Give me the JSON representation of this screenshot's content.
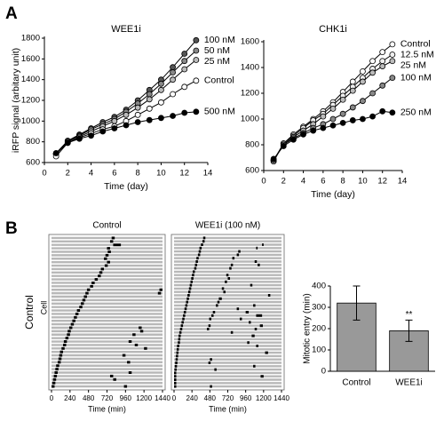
{
  "panel_labels": [
    "A",
    "B"
  ],
  "chart_data": [
    {
      "type": "line",
      "title": "WEE1i",
      "xlabel": "Time (day)",
      "ylabel": "iRFP signal (arbitary unit)",
      "x": [
        1,
        2,
        3,
        4,
        5,
        6,
        7,
        8,
        9,
        10,
        11,
        12,
        13
      ],
      "xlim": [
        0,
        14
      ],
      "xticks": [
        0,
        2,
        4,
        6,
        8,
        10,
        12,
        14
      ],
      "ylim": [
        600,
        1800
      ],
      "yticks": [
        600,
        800,
        1000,
        1200,
        1400,
        1600,
        1800
      ],
      "series": [
        {
          "name": "100 nM",
          "color": "#555555",
          "values": [
            690,
            810,
            870,
            930,
            990,
            1040,
            1110,
            1200,
            1300,
            1400,
            1520,
            1650,
            1780
          ]
        },
        {
          "name": "50 nM",
          "color": "#888888",
          "values": [
            680,
            810,
            860,
            920,
            970,
            1020,
            1090,
            1170,
            1260,
            1360,
            1470,
            1580,
            1680
          ]
        },
        {
          "name": "25 nM",
          "color": "#bbbbbb",
          "values": [
            680,
            800,
            850,
            900,
            950,
            1000,
            1060,
            1130,
            1210,
            1300,
            1400,
            1500,
            1590
          ]
        },
        {
          "name": "Control",
          "color": "#ffffff",
          "values": [
            660,
            790,
            840,
            880,
            920,
            950,
            1000,
            1060,
            1120,
            1180,
            1260,
            1330,
            1390
          ]
        },
        {
          "name": "500 nM",
          "color": "#000000",
          "values": [
            690,
            790,
            830,
            860,
            900,
            930,
            960,
            990,
            1010,
            1030,
            1050,
            1080,
            1090
          ]
        }
      ]
    },
    {
      "type": "line",
      "title": "CHK1i",
      "xlabel": "Time (day)",
      "x": [
        1,
        2,
        3,
        4,
        5,
        6,
        7,
        8,
        9,
        10,
        11,
        12,
        13
      ],
      "xlim": [
        0,
        14
      ],
      "xticks": [
        0,
        2,
        4,
        6,
        8,
        10,
        12,
        14
      ],
      "ylim": [
        600,
        1600
      ],
      "yticks": [
        600,
        800,
        1000,
        1200,
        1400,
        1600
      ],
      "series": [
        {
          "name": "Control",
          "color": "#ffffff",
          "values": [
            670,
            810,
            880,
            940,
            1000,
            1060,
            1130,
            1210,
            1290,
            1370,
            1450,
            1520,
            1580
          ]
        },
        {
          "name": "12.5 nM",
          "color": "#eeeeee",
          "values": [
            680,
            810,
            870,
            930,
            990,
            1040,
            1110,
            1180,
            1250,
            1320,
            1390,
            1450,
            1500
          ]
        },
        {
          "name": "25 nM",
          "color": "#bbbbbb",
          "values": [
            680,
            800,
            860,
            910,
            960,
            1020,
            1080,
            1150,
            1220,
            1290,
            1360,
            1410,
            1450
          ]
        },
        {
          "name": "100 nM",
          "color": "#888888",
          "values": [
            680,
            800,
            850,
            890,
            930,
            960,
            1000,
            1040,
            1090,
            1140,
            1200,
            1260,
            1320
          ]
        },
        {
          "name": "250 nM",
          "color": "#000000",
          "values": [
            690,
            790,
            840,
            880,
            910,
            930,
            950,
            970,
            990,
            1000,
            1020,
            1060,
            1050
          ]
        }
      ]
    },
    {
      "type": "raster",
      "title": "Control",
      "xlabel": "Time (min)",
      "ylabel": "Cell",
      "row_group_label": "Control",
      "xlim": [
        0,
        1440
      ],
      "xticks": [
        0,
        240,
        480,
        720,
        960,
        1200,
        1440
      ],
      "rows": [
        [
          [
            780,
            820
          ]
        ],
        [
          [
            760,
            800
          ]
        ],
        [
          [
            800,
            900
          ]
        ],
        [
          [
            720,
            760
          ]
        ],
        [
          [
            730,
            770
          ]
        ],
        [
          [
            700,
            740
          ]
        ],
        [
          [
            680,
            720
          ]
        ],
        [
          [
            720,
            760
          ]
        ],
        [
          [
            690,
            730
          ]
        ],
        [
          [
            640,
            680
          ]
        ],
        [
          [
            620,
            660
          ]
        ],
        [
          [
            600,
            640
          ]
        ],
        [
          [
            560,
            600
          ]
        ],
        [
          [
            520,
            560
          ]
        ],
        [
          [
            500,
            540
          ]
        ],
        [
          [
            460,
            500
          ],
          [
            1400,
            1440
          ]
        ],
        [
          [
            440,
            480
          ],
          [
            1380,
            1420
          ]
        ],
        [
          [
            420,
            460
          ]
        ],
        [
          [
            400,
            440
          ]
        ],
        [
          [
            380,
            420
          ]
        ],
        [
          [
            360,
            400
          ]
        ],
        [
          [
            330,
            370
          ]
        ],
        [
          [
            310,
            350
          ]
        ],
        [
          [
            290,
            330
          ]
        ],
        [
          [
            270,
            310
          ]
        ],
        [
          [
            250,
            290
          ]
        ],
        [
          [
            230,
            270
          ],
          [
            1130,
            1170
          ]
        ],
        [
          [
            210,
            250
          ],
          [
            1150,
            1190
          ]
        ],
        [
          [
            200,
            240
          ],
          [
            1050,
            1090
          ]
        ],
        [
          [
            180,
            220
          ]
        ],
        [
          [
            160,
            200
          ],
          [
            1000,
            1040
          ]
        ],
        [
          [
            150,
            190
          ],
          [
            1080,
            1120
          ]
        ],
        [
          [
            130,
            170
          ],
          [
            1200,
            1240
          ]
        ],
        [
          [
            110,
            150
          ]
        ],
        [
          [
            100,
            140
          ],
          [
            920,
            960
          ]
        ],
        [
          [
            90,
            130
          ]
        ],
        [
          [
            80,
            120
          ],
          [
            980,
            1020
          ]
        ],
        [
          [
            60,
            100
          ]
        ],
        [
          [
            50,
            90
          ]
        ],
        [
          [
            40,
            80
          ],
          [
            1000,
            1040
          ]
        ],
        [
          [
            30,
            70
          ],
          [
            760,
            800
          ]
        ],
        [
          [
            20,
            60
          ],
          [
            800,
            840
          ]
        ],
        [
          [
            10,
            50
          ]
        ],
        [
          [
            0,
            40
          ],
          [
            940,
            980
          ]
        ]
      ]
    },
    {
      "type": "raster",
      "title": "WEE1i (100 nM)",
      "xlabel": "Time (min)",
      "xlim": [
        0,
        1440
      ],
      "xticks": [
        0,
        240,
        480,
        720,
        960,
        1200,
        1440
      ],
      "rows": [
        [
          [
            390,
            420
          ]
        ],
        [
          [
            380,
            410
          ]
        ],
        [
          [
            360,
            390
          ],
          [
            1180,
            1200
          ]
        ],
        [
          [
            340,
            370
          ],
          [
            1100,
            1120
          ]
        ],
        [
          [
            330,
            360
          ],
          [
            860,
            890
          ]
        ],
        [
          [
            320,
            350
          ],
          [
            840,
            870
          ]
        ],
        [
          [
            300,
            330
          ],
          [
            780,
            810
          ]
        ],
        [
          [
            290,
            320
          ],
          [
            1080,
            1110
          ]
        ],
        [
          [
            280,
            310
          ],
          [
            760,
            790
          ],
          [
            1120,
            1150
          ]
        ],
        [
          [
            270,
            300
          ],
          [
            740,
            770
          ]
        ],
        [
          [
            250,
            280
          ]
        ],
        [
          [
            240,
            270
          ],
          [
            700,
            730
          ]
        ],
        [
          [
            230,
            260
          ],
          [
            720,
            750
          ]
        ],
        [
          [
            220,
            250
          ],
          [
            680,
            710
          ]
        ],
        [
          [
            210,
            240
          ],
          [
            1020,
            1050
          ]
        ],
        [
          [
            200,
            230
          ],
          [
            640,
            670
          ]
        ],
        [
          [
            190,
            220
          ],
          [
            660,
            690
          ]
        ],
        [
          [
            180,
            210
          ],
          [
            1260,
            1290
          ]
        ],
        [
          [
            170,
            200
          ],
          [
            600,
            640
          ]
        ],
        [
          [
            160,
            190
          ],
          [
            580,
            610
          ]
        ],
        [
          [
            150,
            180
          ],
          [
            560,
            590
          ],
          [
            1060,
            1090
          ]
        ],
        [
          [
            140,
            170
          ],
          [
            840,
            870
          ]
        ],
        [
          [
            130,
            160
          ],
          [
            520,
            550
          ],
          [
            960,
            1000
          ]
        ],
        [
          [
            120,
            150
          ],
          [
            500,
            530
          ],
          [
            1100,
            1180
          ]
        ],
        [
          [
            110,
            140
          ],
          [
            470,
            500
          ],
          [
            880,
            910
          ]
        ],
        [
          [
            100,
            130
          ],
          [
            1000,
            1030
          ]
        ],
        [
          [
            90,
            120
          ],
          [
            460,
            490
          ],
          [
            1150,
            1190
          ]
        ],
        [
          [
            80,
            110
          ],
          [
            440,
            470
          ],
          [
            1080,
            1110
          ]
        ],
        [
          [
            70,
            100
          ],
          [
            760,
            790
          ]
        ],
        [
          [
            60,
            90
          ],
          [
            1040,
            1080
          ]
        ],
        [
          [
            55,
            85
          ]
        ],
        [
          [
            50,
            80
          ],
          [
            980,
            1010
          ]
        ],
        [
          [
            40,
            70
          ],
          [
            1100,
            1130
          ]
        ],
        [
          [
            35,
            65
          ]
        ],
        [
          [
            30,
            60
          ],
          [
            1220,
            1260
          ]
        ],
        [
          [
            25,
            55
          ]
        ],
        [
          [
            20,
            50
          ],
          [
            480,
            510
          ]
        ],
        [
          [
            15,
            45
          ],
          [
            460,
            490
          ]
        ],
        [
          [
            10,
            40
          ],
          [
            1060,
            1090
          ]
        ],
        [
          [
            5,
            35
          ],
          [
            540,
            570
          ]
        ],
        [
          [
            0,
            30
          ]
        ],
        [
          [
            0,
            30
          ],
          [
            1160,
            1200
          ]
        ],
        [
          [
            0,
            30
          ]
        ],
        [
          [
            0,
            30
          ]
        ],
        [
          [
            0,
            30
          ],
          [
            480,
            510
          ]
        ]
      ]
    },
    {
      "type": "bar",
      "ylabel": "Mitotic entry (min)",
      "categories": [
        "Control",
        "WEE1i"
      ],
      "values": [
        320,
        190
      ],
      "errors": [
        80,
        50
      ],
      "value_annotations": [
        null,
        "**"
      ],
      "color": "#999999",
      "ylim": [
        0,
        400
      ],
      "yticks": [
        0,
        100,
        200,
        300,
        400
      ]
    }
  ]
}
